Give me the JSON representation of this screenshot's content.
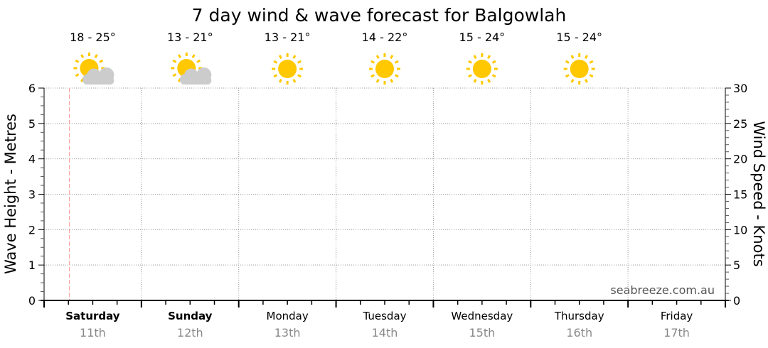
{
  "chart_data": {
    "type": "line",
    "title": "7 day wind & wave forecast for Balgowlah",
    "ylabel": "Wave Height - Metres",
    "y2label": "Wind Speed - Knots",
    "ylim": [
      0,
      6
    ],
    "y2lim": [
      0,
      30
    ],
    "yticks": [
      "0",
      "1",
      "2",
      "3",
      "4",
      "5",
      "6"
    ],
    "y2ticks": [
      "0",
      "5",
      "10",
      "15",
      "20",
      "25",
      "30"
    ],
    "grid": true,
    "days": [
      {
        "name": "Saturday",
        "date": "11th",
        "temp": "18 - 25°",
        "icon": "partly-cloudy-icon",
        "bold": true
      },
      {
        "name": "Sunday",
        "date": "12th",
        "temp": "13 - 21°",
        "icon": "partly-cloudy-icon",
        "bold": true
      },
      {
        "name": "Monday",
        "date": "13th",
        "temp": "13 - 21°",
        "icon": "sunny-icon",
        "bold": false
      },
      {
        "name": "Tuesday",
        "date": "14th",
        "temp": "14 - 22°",
        "icon": "sunny-icon",
        "bold": false
      },
      {
        "name": "Wednesday",
        "date": "15th",
        "temp": "15 - 24°",
        "icon": "sunny-icon",
        "bold": false
      },
      {
        "name": "Thursday",
        "date": "16th",
        "temp": "15 - 24°",
        "icon": "sunny-icon",
        "bold": false
      },
      {
        "name": "Friday",
        "date": "17th",
        "temp": "",
        "icon": "",
        "bold": false
      }
    ],
    "current_time_marker_day_fraction": 0.26,
    "series": [],
    "watermark": "seabreeze.com.au",
    "colors": {
      "sun": "#ffc800",
      "cloud": "#cccccc",
      "now": "#ff9999",
      "grid": "#999999"
    }
  }
}
